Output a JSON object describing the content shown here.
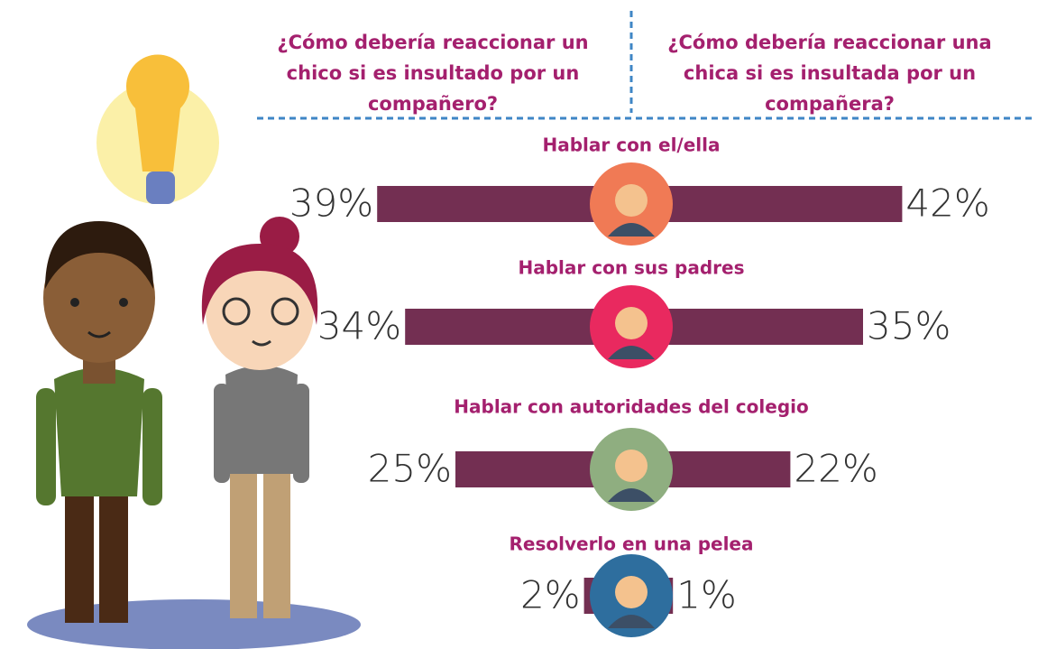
{
  "chart_data": {
    "type": "butterfly",
    "categories": [
      "Hablar con el/ella",
      "Hablar con sus padres",
      "Hablar con autoridades del colegio",
      "Resolverlo en una pelea"
    ],
    "series": [
      {
        "name": "¿Cómo debería reaccionar un chico si es insultado por un compañero?",
        "color": "#732f52",
        "values": [
          39,
          34,
          25,
          2
        ],
        "value_labels": [
          "39%",
          "34%",
          "25%",
          "2%"
        ]
      },
      {
        "name": "¿Cómo debería reaccionar una chica si es insultada por un compañera?",
        "color": "#732f52",
        "values": [
          42,
          35,
          22,
          1
        ],
        "value_labels": [
          "42%",
          "35%",
          "22%",
          "1%"
        ]
      }
    ]
  }
}
